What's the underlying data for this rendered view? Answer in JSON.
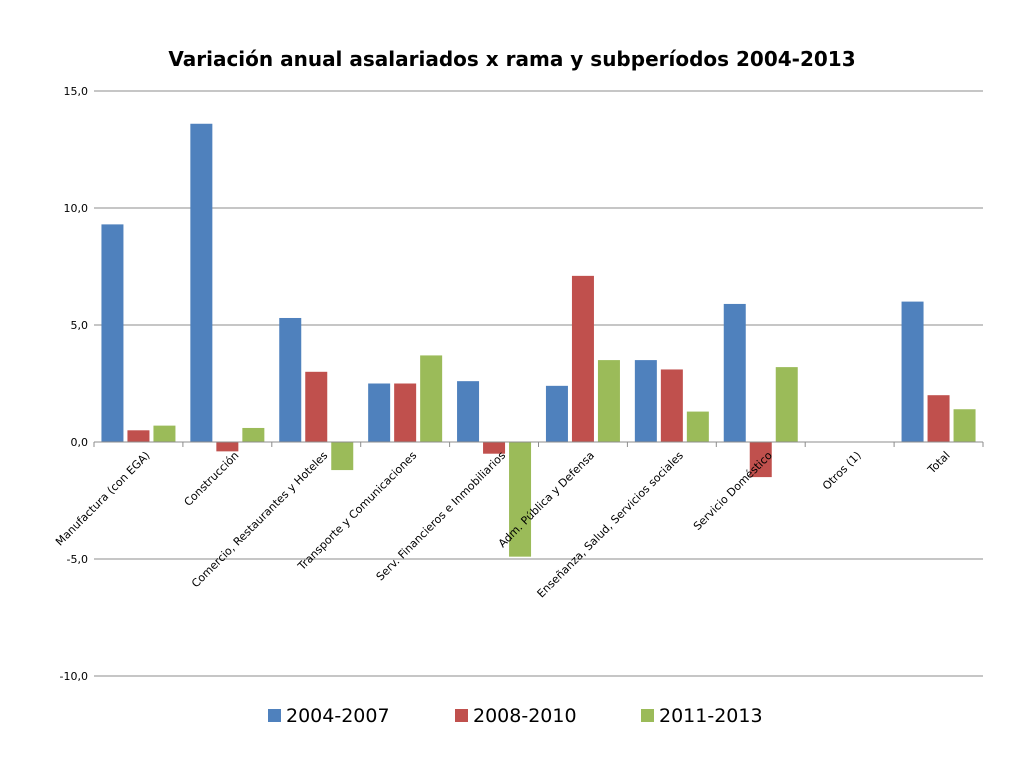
{
  "chart_data": {
    "type": "bar",
    "title": "Variación anual asalariados x rama y subperíodos 2004-2013",
    "xlabel": "",
    "ylabel": "",
    "ylim": [
      -10,
      15
    ],
    "yticks": [
      15,
      10,
      5,
      0,
      -5,
      -10
    ],
    "ytick_labels": [
      "15,0",
      "10,0",
      "5,0",
      "0,0",
      "-5,0",
      "-10,0"
    ],
    "grid": true,
    "legend_position": "bottom",
    "categories": [
      "Manufactura (con EGA)",
      "Construcción",
      "Comercio, Restaurantes y Hoteles",
      "Transporte y Comunicaciones",
      "Serv. Financieros e Inmobiliarios",
      "Adm. Pública y Defensa",
      "Enseñanza, Salud, Servicios sociales",
      "Servicio Doméstico",
      "Otros (1)",
      "Total"
    ],
    "series": [
      {
        "name": "2004-2007",
        "color": "#4F81BD",
        "values": [
          9.3,
          13.6,
          5.3,
          2.5,
          2.6,
          2.4,
          3.5,
          5.9,
          null,
          6.0
        ]
      },
      {
        "name": "2008-2010",
        "color": "#C0504D",
        "values": [
          0.5,
          -0.4,
          3.0,
          2.5,
          -0.5,
          7.1,
          3.1,
          -1.5,
          null,
          2.0
        ]
      },
      {
        "name": "2011-2013",
        "color": "#9BBB59",
        "values": [
          0.7,
          0.6,
          -1.2,
          3.7,
          -4.9,
          3.5,
          1.3,
          3.2,
          null,
          1.4
        ]
      }
    ]
  }
}
